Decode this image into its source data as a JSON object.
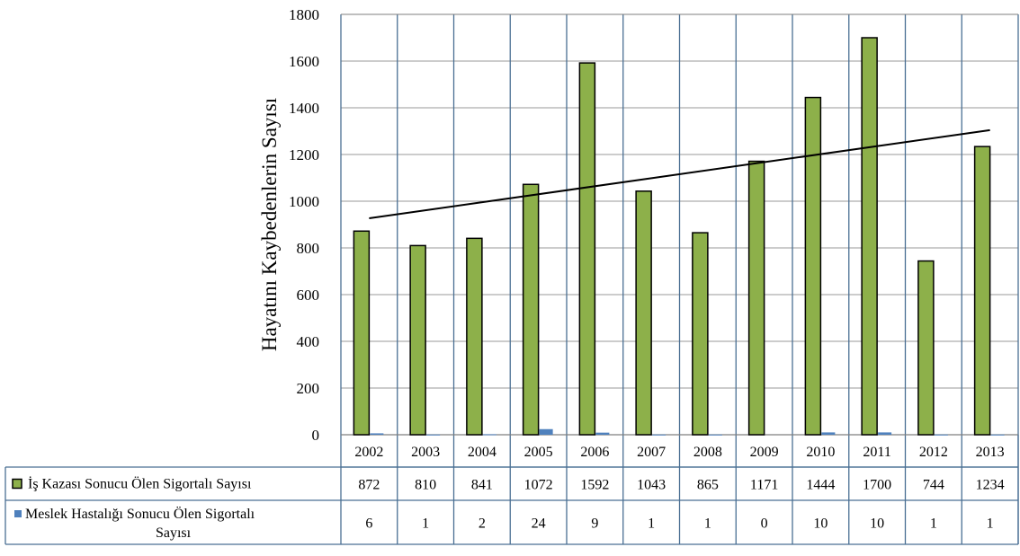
{
  "chart_data": {
    "type": "bar",
    "title": "",
    "xlabel": "",
    "ylabel": "Hayatını Kaybedenlerin Sayısı",
    "ylim": [
      0,
      1800
    ],
    "yticks": [
      0,
      200,
      400,
      600,
      800,
      1000,
      1200,
      1400,
      1600,
      1800
    ],
    "categories": [
      "2002",
      "2003",
      "2004",
      "2005",
      "2006",
      "2007",
      "2008",
      "2009",
      "2010",
      "2011",
      "2012",
      "2013"
    ],
    "series": [
      {
        "name": "İş Kazası Sonucu Ölen Sigortalı Sayısı",
        "values": [
          872,
          810,
          841,
          1072,
          1592,
          1043,
          865,
          1171,
          1444,
          1700,
          744,
          1234
        ],
        "color": "#8db04a"
      },
      {
        "name": "Meslek Hastalığı Sonucu Ölen Sigortalı Sayısı",
        "values": [
          6,
          1,
          2,
          24,
          9,
          1,
          1,
          0,
          10,
          10,
          1,
          1
        ],
        "color": "#4f81bd"
      }
    ],
    "trendline": {
      "type": "linear",
      "series": 0,
      "color": "#000000"
    },
    "grid": true,
    "data_table": true,
    "legend": "data-table-left"
  }
}
